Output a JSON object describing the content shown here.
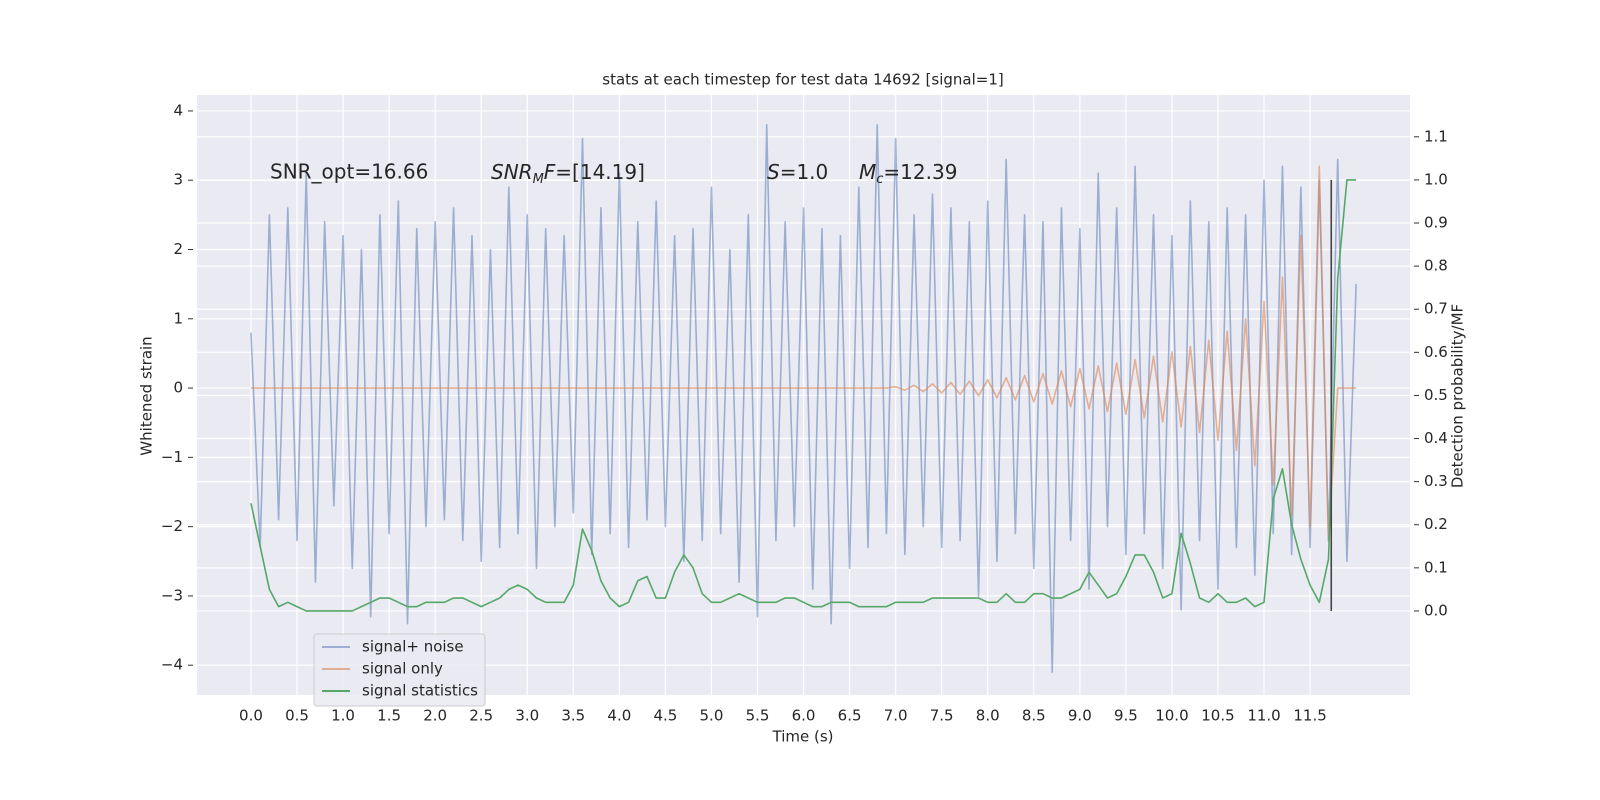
{
  "chart_data": {
    "type": "line",
    "title": "stats at each timestep for test data 14692 [signal=1]",
    "x_label": "Time (s)",
    "y_label": "Whitened strain",
    "y2_label": "Detection probability/MF",
    "annotations": [
      {
        "text": "SNR_opt=16.66"
      },
      {
        "italic": "SNR",
        "sub": "M",
        "italic2": "F",
        "text": "=[14.19]"
      },
      {
        "italic": "S",
        "text": "=1.0"
      },
      {
        "italic": "M",
        "sub": "c",
        "text": "=12.39"
      }
    ],
    "x": [
      0,
      0.1,
      0.2,
      0.3,
      0.4,
      0.5,
      0.6,
      0.7,
      0.8,
      0.9,
      1.0,
      1.1,
      1.2,
      1.3,
      1.4,
      1.5,
      1.6,
      1.7,
      1.8,
      1.9,
      2.0,
      2.1,
      2.2,
      2.3,
      2.4,
      2.5,
      2.6,
      2.7,
      2.8,
      2.9,
      3.0,
      3.1,
      3.2,
      3.3,
      3.4,
      3.5,
      3.6,
      3.7,
      3.8,
      3.9,
      4.0,
      4.1,
      4.2,
      4.3,
      4.4,
      4.5,
      4.6,
      4.7,
      4.8,
      4.9,
      5.0,
      5.1,
      5.2,
      5.3,
      5.4,
      5.5,
      5.6,
      5.7,
      5.8,
      5.9,
      6.0,
      6.1,
      6.2,
      6.3,
      6.4,
      6.5,
      6.6,
      6.7,
      6.8,
      6.9,
      7.0,
      7.1,
      7.2,
      7.3,
      7.4,
      7.5,
      7.6,
      7.7,
      7.8,
      7.9,
      8.0,
      8.1,
      8.2,
      8.3,
      8.4,
      8.5,
      8.6,
      8.7,
      8.8,
      8.9,
      9.0,
      9.1,
      9.2,
      9.3,
      9.4,
      9.5,
      9.6,
      9.7,
      9.8,
      9.9,
      10.0,
      10.1,
      10.2,
      10.3,
      10.4,
      10.5,
      10.6,
      10.7,
      10.8,
      10.9,
      11.0,
      11.1,
      11.2,
      11.3,
      11.4,
      11.5,
      11.6,
      11.7,
      11.8,
      11.9,
      12.0
    ],
    "series": [
      {
        "name": "signal+ noise",
        "color": "#4c72b0",
        "opacity": 0.5,
        "values": [
          0.8,
          -2.3,
          2.5,
          -1.9,
          2.6,
          -2.2,
          3.1,
          -2.8,
          2.4,
          -1.7,
          2.2,
          -2.6,
          2.0,
          -3.3,
          2.5,
          -2.1,
          2.7,
          -3.4,
          2.3,
          -2.0,
          2.4,
          -1.9,
          2.6,
          -2.2,
          2.2,
          -2.5,
          2.0,
          -2.3,
          2.9,
          -2.1,
          2.5,
          -2.6,
          2.3,
          -2.0,
          2.2,
          -1.8,
          3.6,
          -2.4,
          2.6,
          -2.1,
          3.1,
          -2.3,
          2.4,
          -1.9,
          2.7,
          -2.0,
          2.2,
          -2.5,
          2.3,
          -2.2,
          2.9,
          -2.1,
          2.0,
          -2.8,
          2.5,
          -3.3,
          3.8,
          -2.2,
          2.4,
          -2.0,
          2.6,
          -2.9,
          2.3,
          -3.4,
          2.2,
          -2.6,
          2.9,
          -2.3,
          3.8,
          -2.1,
          3.6,
          -2.4,
          2.5,
          -2.0,
          2.8,
          -2.3,
          2.6,
          -2.2,
          2.4,
          -3.0,
          2.7,
          -2.5,
          3.3,
          -2.1,
          2.5,
          -2.6,
          2.4,
          -4.1,
          2.6,
          -2.2,
          2.3,
          -2.9,
          3.1,
          -2.0,
          2.6,
          -2.4,
          3.2,
          -2.1,
          2.5,
          -2.6,
          2.2,
          -3.2,
          2.7,
          -2.2,
          2.4,
          -2.9,
          2.6,
          -2.3,
          2.5,
          -2.7,
          3.0,
          -2.1,
          3.2,
          -2.4,
          2.9,
          -2.3,
          3.0,
          -2.2,
          3.3,
          -2.5,
          1.5
        ]
      },
      {
        "name": "signal only",
        "color": "#dd8452",
        "opacity": 0.6,
        "values": [
          0,
          0,
          0,
          0,
          0,
          0,
          0,
          0,
          0,
          0,
          0,
          0,
          0,
          0,
          0,
          0,
          0,
          0,
          0,
          0,
          0,
          0,
          0,
          0,
          0,
          0,
          0,
          0,
          0,
          0,
          0,
          0,
          0,
          0,
          0,
          0,
          0,
          0,
          0,
          0,
          0,
          0,
          0,
          0,
          0,
          0,
          0,
          0,
          0,
          0,
          0,
          0,
          0,
          0,
          0,
          0,
          0,
          0,
          0,
          0,
          0,
          0,
          0,
          0,
          0,
          0,
          0,
          0,
          0,
          0,
          0.02,
          -0.03,
          0.04,
          -0.05,
          0.06,
          -0.07,
          0.08,
          -0.09,
          0.1,
          -0.11,
          0.12,
          -0.14,
          0.15,
          -0.17,
          0.18,
          -0.2,
          0.21,
          -0.23,
          0.25,
          -0.27,
          0.28,
          -0.3,
          0.32,
          -0.34,
          0.36,
          -0.38,
          0.41,
          -0.43,
          0.46,
          -0.49,
          0.52,
          -0.56,
          0.6,
          -0.64,
          0.69,
          -0.75,
          0.82,
          -0.9,
          1.0,
          -1.12,
          1.25,
          -1.4,
          1.6,
          -1.85,
          2.2,
          -2.0,
          3.2,
          -2.2,
          0,
          0,
          0
        ]
      },
      {
        "name": "signal statistics",
        "color": "#55a868",
        "opacity": 1,
        "axis": "y2",
        "values": [
          0.25,
          0.15,
          0.05,
          0.01,
          0.02,
          0.01,
          0,
          0,
          0,
          0,
          0,
          0,
          0.01,
          0.02,
          0.03,
          0.03,
          0.02,
          0.01,
          0.01,
          0.02,
          0.02,
          0.02,
          0.03,
          0.03,
          0.02,
          0.01,
          0.02,
          0.03,
          0.05,
          0.06,
          0.05,
          0.03,
          0.02,
          0.02,
          0.02,
          0.06,
          0.19,
          0.14,
          0.07,
          0.03,
          0.01,
          0.02,
          0.07,
          0.08,
          0.03,
          0.03,
          0.09,
          0.13,
          0.1,
          0.04,
          0.02,
          0.02,
          0.03,
          0.04,
          0.03,
          0.02,
          0.02,
          0.02,
          0.03,
          0.03,
          0.02,
          0.01,
          0.01,
          0.02,
          0.02,
          0.02,
          0.01,
          0.01,
          0.01,
          0.01,
          0.02,
          0.02,
          0.02,
          0.02,
          0.03,
          0.03,
          0.03,
          0.03,
          0.03,
          0.03,
          0.02,
          0.02,
          0.04,
          0.02,
          0.02,
          0.04,
          0.04,
          0.03,
          0.03,
          0.04,
          0.05,
          0.09,
          0.06,
          0.03,
          0.04,
          0.08,
          0.13,
          0.13,
          0.09,
          0.03,
          0.04,
          0.18,
          0.11,
          0.03,
          0.02,
          0.04,
          0.02,
          0.02,
          0.03,
          0.01,
          0.02,
          0.26,
          0.33,
          0.2,
          0.12,
          0.06,
          0.02,
          0.12,
          0.77,
          1.0,
          1.0
        ]
      }
    ],
    "vertical_line": {
      "x": 11.73,
      "y2": [
        0,
        1.0
      ],
      "color": "#444444"
    },
    "xlim": [
      -0.586,
      12.585
    ],
    "ylim": [
      -4.43,
      4.23
    ],
    "y2lim": [
      -0.195,
      1.197
    ],
    "xticks": [
      {
        "value": 0,
        "label": "0.0"
      },
      {
        "value": 0.5,
        "label": "0.5"
      },
      {
        "value": 1,
        "label": "1.0"
      },
      {
        "value": 1.5,
        "label": "1.5"
      },
      {
        "value": 2,
        "label": "2.0"
      },
      {
        "value": 2.5,
        "label": "2.5"
      },
      {
        "value": 3,
        "label": "3.0"
      },
      {
        "value": 3.5,
        "label": "3.5"
      },
      {
        "value": 4,
        "label": "4.0"
      },
      {
        "value": 4.5,
        "label": "4.5"
      },
      {
        "value": 5,
        "label": "5.0"
      },
      {
        "value": 5.5,
        "label": "5.5"
      },
      {
        "value": 6,
        "label": "6.0"
      },
      {
        "value": 6.5,
        "label": "6.5"
      },
      {
        "value": 7,
        "label": "7.0"
      },
      {
        "value": 7.5,
        "label": "7.5"
      },
      {
        "value": 8,
        "label": "8.0"
      },
      {
        "value": 8.5,
        "label": "8.5"
      },
      {
        "value": 9,
        "label": "9.0"
      },
      {
        "value": 9.5,
        "label": "9.5"
      },
      {
        "value": 10,
        "label": "10.0"
      },
      {
        "value": 10.5,
        "label": "10.5"
      },
      {
        "value": 11,
        "label": "11.0"
      },
      {
        "value": 11.5,
        "label": "11.5"
      }
    ],
    "yticks": [
      {
        "value": -4,
        "label": "−4"
      },
      {
        "value": -3,
        "label": "−3"
      },
      {
        "value": -2,
        "label": "−2"
      },
      {
        "value": -1,
        "label": "−1"
      },
      0,
      1,
      2,
      3,
      4
    ],
    "y2ticks": [
      {
        "value": 0,
        "label": "0.0"
      },
      {
        "value": 0.1,
        "label": "0.1"
      },
      {
        "value": 0.2,
        "label": "0.2"
      },
      {
        "value": 0.3,
        "label": "0.3"
      },
      {
        "value": 0.4,
        "label": "0.4"
      },
      {
        "value": 0.5,
        "label": "0.5"
      },
      {
        "value": 0.6,
        "label": "0.6"
      },
      {
        "value": 0.7,
        "label": "0.7"
      },
      {
        "value": 0.8,
        "label": "0.8"
      },
      {
        "value": 0.9,
        "label": "0.9"
      },
      {
        "value": 1.0,
        "label": "1.0"
      },
      {
        "value": 1.1,
        "label": "1.1"
      }
    ],
    "grid": true,
    "background": "#eaeaf2",
    "legend": "lower left"
  }
}
